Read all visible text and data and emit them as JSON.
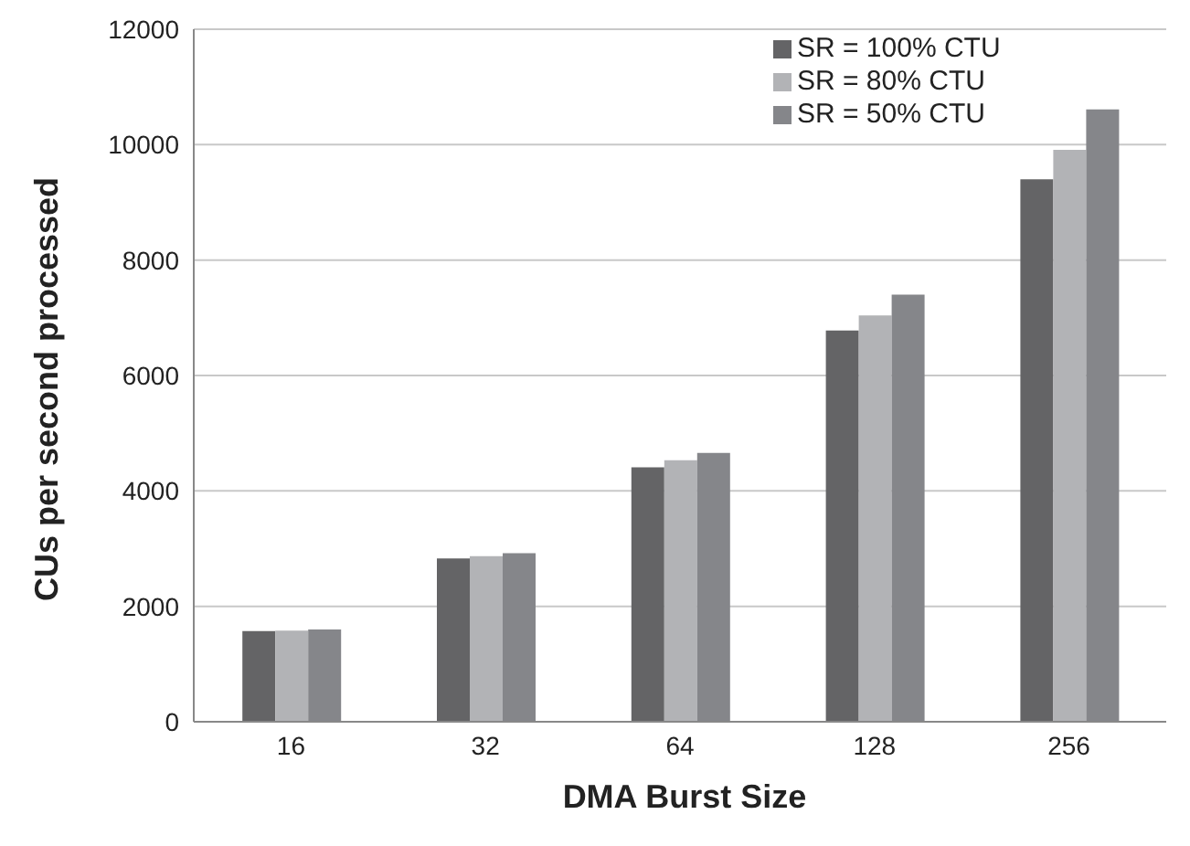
{
  "chart_data": {
    "type": "bar",
    "xlabel": "DMA Burst Size",
    "ylabel": "CUs per second processed",
    "categories": [
      "16",
      "32",
      "64",
      "128",
      "256"
    ],
    "series": [
      {
        "name": "SR = 100% CTU",
        "color": "#646466",
        "values": [
          1570,
          2830,
          4410,
          6780,
          9400
        ]
      },
      {
        "name": "SR = 80% CTU",
        "color": "#b2b3b6",
        "values": [
          1580,
          2870,
          4530,
          7040,
          9910
        ]
      },
      {
        "name": "SR = 50% CTU",
        "color": "#85868a",
        "values": [
          1600,
          2920,
          4660,
          7400,
          10610
        ]
      }
    ],
    "ylim": [
      0,
      12000
    ],
    "yticks": [
      0,
      2000,
      4000,
      6000,
      8000,
      10000,
      12000
    ],
    "grid": "y",
    "legend": "top right"
  }
}
